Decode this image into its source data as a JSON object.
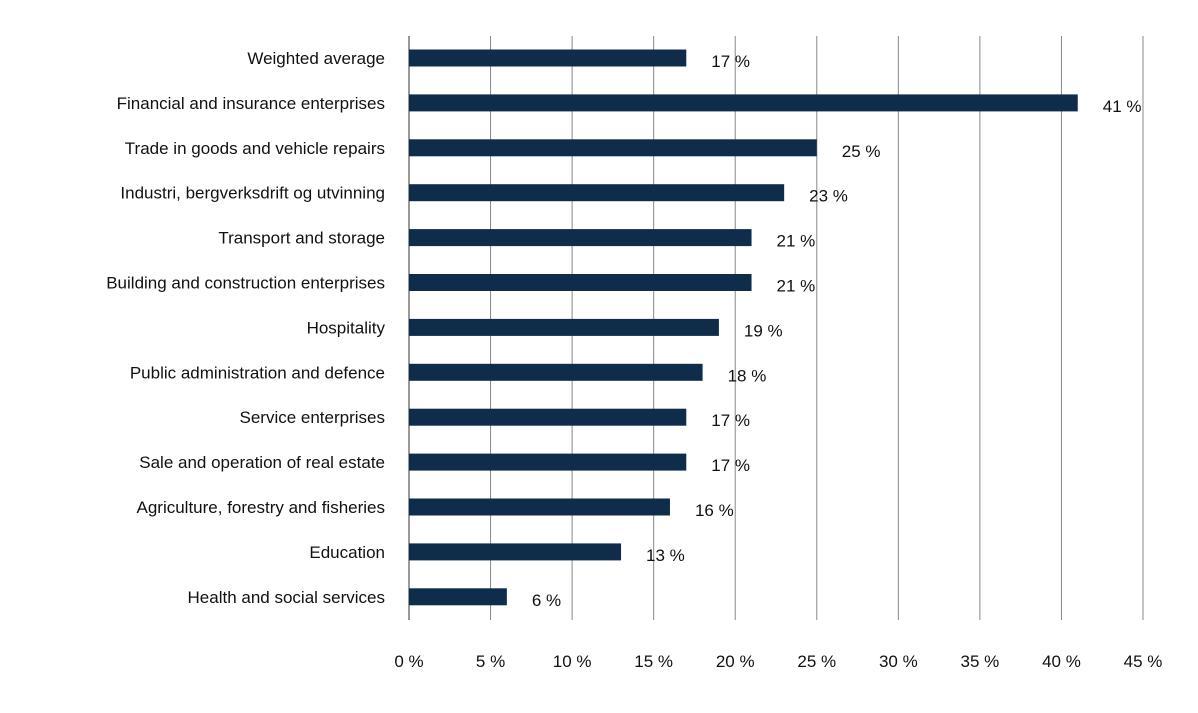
{
  "chart_data": {
    "type": "bar",
    "orientation": "horizontal",
    "title": "",
    "xlabel": "",
    "ylabel": "",
    "categories": [
      "Weighted average",
      "Financial and insurance enterprises",
      "Trade in goods and vehicle repairs",
      "Industri, bergverksdrift og utvinning",
      "Transport and storage",
      "Building and construction enterprises",
      "Hospitality",
      "Public administration and defence",
      "Service enterprises",
      "Sale and operation of real estate",
      "Agriculture, forestry and fisheries",
      "Education",
      "Health and social services"
    ],
    "values": [
      17,
      41,
      25,
      23,
      21,
      21,
      19,
      18,
      17,
      17,
      16,
      13,
      6
    ],
    "data_labels": [
      "17 %",
      "41 %",
      "25 %",
      "23 %",
      "21 %",
      "21 %",
      "19 %",
      "18 %",
      "17 %",
      "17 %",
      "16 %",
      "13 %",
      "6 %"
    ],
    "xlim": [
      0,
      45
    ],
    "x_ticks": [
      0,
      5,
      10,
      15,
      20,
      25,
      30,
      35,
      40,
      45
    ],
    "x_tick_labels": [
      "0 %",
      "5 %",
      "10 %",
      "15 %",
      "20 %",
      "25 %",
      "30 %",
      "35 %",
      "40 %",
      "45 %"
    ],
    "grid": "vertical",
    "legend": "none",
    "colors": {
      "bar": "#0f2d4a",
      "grid": "#888888"
    }
  }
}
